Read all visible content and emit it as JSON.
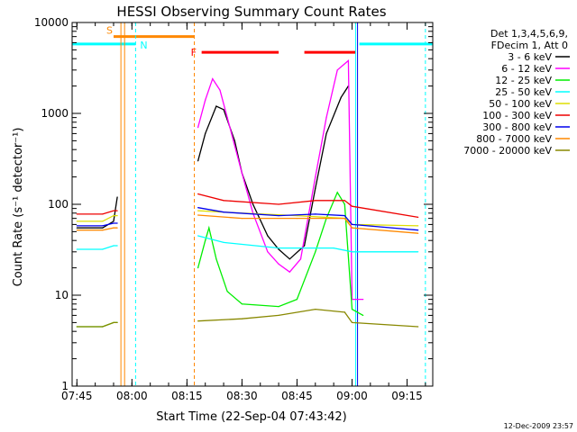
{
  "chart_data": {
    "type": "line",
    "title": "HESSI Observing Summary Count Rates",
    "xlabel": "Start Time (22-Sep-04 07:43:42)",
    "ylabel": "Count Rate (s⁻¹ detector⁻¹)",
    "ylog": true,
    "xlim": [
      "07:43:42",
      "09:22:00"
    ],
    "ylim": [
      1,
      10000
    ],
    "x_ticks": [
      "07:45",
      "08:00",
      "08:15",
      "08:30",
      "08:45",
      "09:00",
      "09:15"
    ],
    "y_ticks": [
      "1",
      "10",
      "100",
      "1000",
      "10000"
    ],
    "legend": {
      "position": "right",
      "header": [
        "Det 1,3,4,5,6,9,",
        "FDecim 1, Att 0"
      ],
      "entries": [
        {
          "label": "3 - 6 keV",
          "color": "#000000"
        },
        {
          "label": "6 - 12 keV",
          "color": "#ff00ff"
        },
        {
          "label": "12 - 25 keV",
          "color": "#00ee00"
        },
        {
          "label": "25 - 50 keV",
          "color": "#00ffff"
        },
        {
          "label": "50 - 100 keV",
          "color": "#dddd00"
        },
        {
          "label": "100 - 300 keV",
          "color": "#ee0000"
        },
        {
          "label": "300 - 800 keV",
          "color": "#0000ee"
        },
        {
          "label": "800 - 7000 keV",
          "color": "#ff8800"
        },
        {
          "label": "7000 - 20000 keV",
          "color": "#888800"
        }
      ]
    },
    "series": [
      {
        "name": "3 - 6 keV",
        "color": "#000000",
        "points": [
          [
            "07:45",
            55
          ],
          [
            "07:52",
            55
          ],
          [
            "07:55",
            65
          ],
          [
            "07:56",
            120
          ],
          [
            "08:18",
            300
          ],
          [
            "08:20",
            600
          ],
          [
            "08:23",
            1200
          ],
          [
            "08:25",
            1100
          ],
          [
            "08:28",
            500
          ],
          [
            "08:30",
            220
          ],
          [
            "08:33",
            100
          ],
          [
            "08:37",
            45
          ],
          [
            "08:40",
            32
          ],
          [
            "08:43",
            25
          ],
          [
            "08:47",
            35
          ],
          [
            "08:50",
            150
          ],
          [
            "08:53",
            600
          ],
          [
            "08:57",
            1500
          ],
          [
            "08:59",
            2000
          ]
        ]
      },
      {
        "name": "6 - 12 keV",
        "color": "#ff00ff",
        "points": [
          [
            "08:18",
            700
          ],
          [
            "08:20",
            1400
          ],
          [
            "08:22",
            2400
          ],
          [
            "08:24",
            1800
          ],
          [
            "08:26",
            900
          ],
          [
            "08:30",
            220
          ],
          [
            "08:33",
            80
          ],
          [
            "08:37",
            30
          ],
          [
            "08:40",
            22
          ],
          [
            "08:43",
            18
          ],
          [
            "08:46",
            25
          ],
          [
            "08:50",
            200
          ],
          [
            "08:53",
            900
          ],
          [
            "08:56",
            3000
          ],
          [
            "08:59",
            3800
          ],
          [
            "09:00",
            9
          ],
          [
            "09:03",
            9
          ]
        ]
      },
      {
        "name": "12 - 25 keV",
        "color": "#00ee00",
        "points": [
          [
            "07:45",
            4.5
          ],
          [
            "07:52",
            4.5
          ],
          [
            "07:55",
            5
          ],
          [
            "07:56",
            5
          ],
          [
            "08:18",
            20
          ],
          [
            "08:20",
            40
          ],
          [
            "08:21",
            55
          ],
          [
            "08:23",
            25
          ],
          [
            "08:26",
            11
          ],
          [
            "08:30",
            8
          ],
          [
            "08:40",
            7.5
          ],
          [
            "08:45",
            9
          ],
          [
            "08:50",
            30
          ],
          [
            "08:53",
            70
          ],
          [
            "08:56",
            135
          ],
          [
            "08:58",
            100
          ],
          [
            "09:00",
            7
          ],
          [
            "09:03",
            6
          ]
        ]
      },
      {
        "name": "25 - 50 keV",
        "color": "#00ffff",
        "points": [
          [
            "07:45",
            32
          ],
          [
            "07:52",
            32
          ],
          [
            "07:55",
            35
          ],
          [
            "07:56",
            35
          ],
          [
            "08:18",
            45
          ],
          [
            "08:25",
            38
          ],
          [
            "08:40",
            33
          ],
          [
            "08:55",
            33
          ],
          [
            "09:00",
            30
          ],
          [
            "09:18",
            30
          ]
        ]
      },
      {
        "name": "50 - 100 keV",
        "color": "#dddd00",
        "points": [
          [
            "07:45",
            65
          ],
          [
            "07:52",
            65
          ],
          [
            "07:55",
            75
          ],
          [
            "07:56",
            75
          ],
          [
            "08:18",
            85
          ],
          [
            "08:30",
            80
          ],
          [
            "08:45",
            75
          ],
          [
            "08:58",
            70
          ],
          [
            "09:00",
            60
          ],
          [
            "09:18",
            58
          ]
        ]
      },
      {
        "name": "100 - 300 keV",
        "color": "#ee0000",
        "points": [
          [
            "07:45",
            78
          ],
          [
            "07:52",
            78
          ],
          [
            "07:55",
            85
          ],
          [
            "07:56",
            85
          ],
          [
            "08:18",
            130
          ],
          [
            "08:25",
            110
          ],
          [
            "08:40",
            100
          ],
          [
            "08:50",
            110
          ],
          [
            "08:58",
            110
          ],
          [
            "09:00",
            95
          ],
          [
            "09:18",
            72
          ]
        ]
      },
      {
        "name": "300 - 800 keV",
        "color": "#0000ee",
        "points": [
          [
            "07:45",
            58
          ],
          [
            "07:52",
            58
          ],
          [
            "07:55",
            62
          ],
          [
            "07:56",
            62
          ],
          [
            "08:18",
            92
          ],
          [
            "08:25",
            82
          ],
          [
            "08:40",
            75
          ],
          [
            "08:50",
            78
          ],
          [
            "08:58",
            75
          ],
          [
            "09:00",
            60
          ],
          [
            "09:18",
            52
          ]
        ]
      },
      {
        "name": "800 - 7000 keV",
        "color": "#ff8800",
        "points": [
          [
            "07:45",
            52
          ],
          [
            "07:52",
            52
          ],
          [
            "07:55",
            55
          ],
          [
            "07:56",
            55
          ],
          [
            "08:18",
            76
          ],
          [
            "08:30",
            70
          ],
          [
            "08:45",
            70
          ],
          [
            "08:58",
            70
          ],
          [
            "09:00",
            55
          ],
          [
            "09:18",
            48
          ]
        ]
      },
      {
        "name": "7000 - 20000 keV",
        "color": "#888800",
        "points": [
          [
            "07:45",
            4.5
          ],
          [
            "07:52",
            4.5
          ],
          [
            "07:55",
            5
          ],
          [
            "07:56",
            5
          ],
          [
            "08:18",
            5.2
          ],
          [
            "08:30",
            5.5
          ],
          [
            "08:40",
            6
          ],
          [
            "08:50",
            7
          ],
          [
            "08:58",
            6.5
          ],
          [
            "09:00",
            5
          ],
          [
            "09:18",
            4.5
          ]
        ]
      }
    ],
    "flags": {
      "saa": {
        "label": "S",
        "color": "#ff8800",
        "start": "07:55:00",
        "end": "08:17:00",
        "level": 7000
      },
      "night": {
        "label": "N",
        "color": "#00ffff",
        "start": "07:43:42",
        "end": "08:01:00",
        "level": 5800
      },
      "night2": {
        "color": "#00ffff",
        "start": "09:02:00",
        "end": "09:22:00",
        "level": 5800
      },
      "flare": {
        "label": "F",
        "color": "#ff0000",
        "level": 4700,
        "segments": [
          [
            "08:19:00",
            "08:40:00"
          ],
          [
            "08:47:00",
            "09:01:00"
          ]
        ]
      }
    },
    "vlines": [
      {
        "time": "07:43:42",
        "color": "#00ffff",
        "style": "solid"
      },
      {
        "time": "07:57:00",
        "color": "#ff8800",
        "style": "solid"
      },
      {
        "time": "07:58:00",
        "color": "#ff8800",
        "style": "solid"
      },
      {
        "time": "08:01:00",
        "color": "#00ffff",
        "style": "dashed"
      },
      {
        "time": "08:17:00",
        "color": "#ff8800",
        "style": "dashed"
      },
      {
        "time": "09:01:00",
        "color": "#00ffff",
        "style": "solid"
      },
      {
        "time": "09:01:30",
        "color": "#0000ee",
        "style": "solid"
      },
      {
        "time": "09:20:00",
        "color": "#00ffff",
        "style": "dashed"
      }
    ],
    "footer_timestamp": "12-Dec-2009 23:57"
  }
}
